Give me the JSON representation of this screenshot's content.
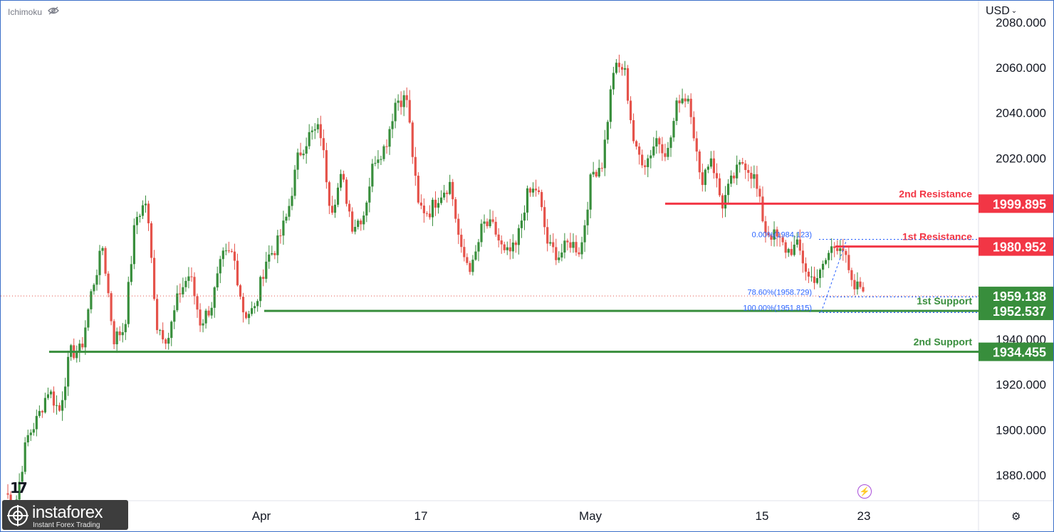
{
  "header": {
    "indicator": "Ichimoku",
    "currency": "USD"
  },
  "footer": {
    "brand_name": "instaforex",
    "brand_tagline": "Instant Forex Trading"
  },
  "chart_data": {
    "type": "candlestick",
    "ylim": [
      1869,
      2086
    ],
    "y_ticks": [
      {
        "label": "1880.000",
        "value": 1880
      },
      {
        "label": "1900.000",
        "value": 1900
      },
      {
        "label": "1920.000",
        "value": 1920
      },
      {
        "label": "1940.000",
        "value": 1940
      },
      {
        "label": "2020.000",
        "value": 2020
      },
      {
        "label": "2040.000",
        "value": 2040
      },
      {
        "label": "2060.000",
        "value": 2060
      },
      {
        "label": "2080.000",
        "value": 2080
      }
    ],
    "x_labels": [
      "Apr",
      "17",
      "May",
      "15",
      "23"
    ],
    "close_path": [
      [
        1872,
        1868
      ],
      [
        1896,
        1905
      ],
      [
        1918,
        1908
      ],
      [
        1934,
        1935
      ],
      [
        1962,
        1981
      ],
      [
        1940,
        1945
      ],
      [
        1993,
        2001
      ],
      [
        1946,
        1940
      ],
      [
        1960,
        1969
      ],
      [
        1947,
        1955
      ],
      [
        1976,
        1978
      ],
      [
        1951,
        1953
      ],
      [
        1975,
        1981
      ],
      [
        1995,
        2021
      ],
      [
        2030,
        2033
      ],
      [
        1997,
        2012
      ],
      [
        1990,
        1995
      ],
      [
        2020,
        2025
      ],
      [
        2046,
        2046
      ],
      [
        1999,
        1996
      ],
      [
        2004,
        2009
      ],
      [
        1978,
        1971
      ],
      [
        1991,
        1989
      ],
      [
        1977,
        1980
      ],
      [
        2003,
        2007
      ],
      [
        1981,
        1977
      ],
      [
        1983,
        1979
      ],
      [
        2013,
        2018
      ],
      [
        2059,
        2060
      ],
      [
        2023,
        2018
      ],
      [
        2029,
        2022
      ],
      [
        2047,
        2047
      ],
      [
        2009,
        2021
      ],
      [
        1999,
        2011
      ],
      [
        2019,
        2011
      ],
      [
        1988,
        1985
      ],
      [
        1979,
        1981
      ],
      [
        1967,
        1968
      ],
      [
        1980,
        1983
      ],
      [
        1962,
        1964
      ]
    ],
    "price_levels": [
      {
        "name": "2nd Resistance",
        "value": 1999.895,
        "label": "1999.895",
        "color": "#f23645"
      },
      {
        "name": "1st Resistance",
        "value": 1980.952,
        "label": "1980.952",
        "color": "#f23645"
      },
      {
        "name": "1st Support",
        "value": 1952.537,
        "label": "1952.537",
        "color": "#388e3c"
      },
      {
        "name": "2nd Support",
        "value": 1934.455,
        "label": "1934.455",
        "color": "#388e3c"
      }
    ],
    "current_price": {
      "value": 1959.138,
      "label": "1959.138",
      "color": "#388e3c"
    },
    "fibonacci": [
      {
        "label": "0.00%(1984.123)",
        "value": 1984.123
      },
      {
        "label": "78.60%(1958.729)",
        "value": 1958.729
      },
      {
        "label": "100.00%(1951.815)",
        "value": 1951.815
      }
    ],
    "colors": {
      "up": "#388e3c",
      "down": "#e5534b",
      "fib": "#2962ff"
    }
  }
}
